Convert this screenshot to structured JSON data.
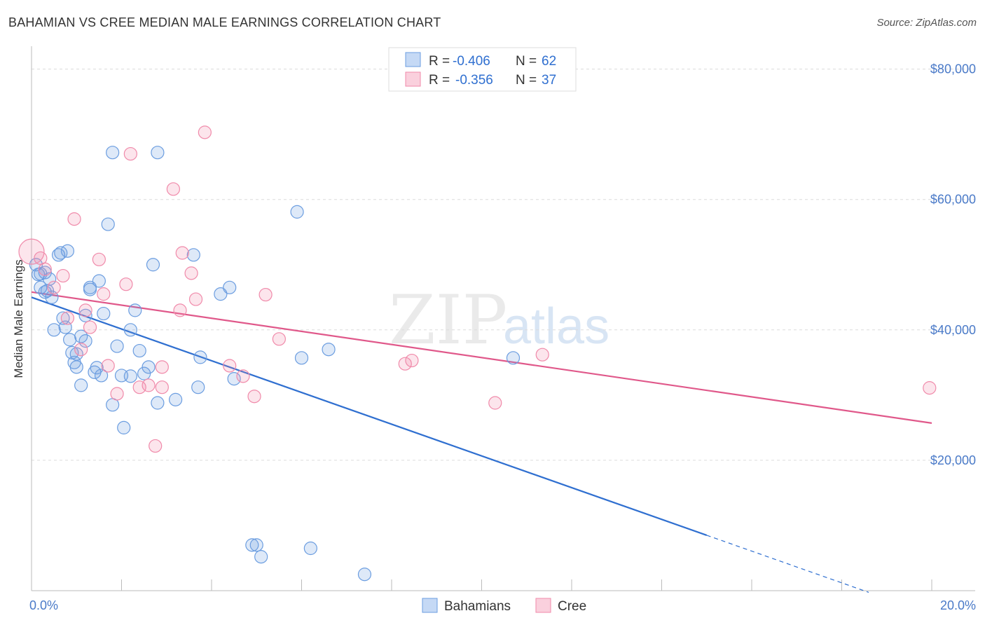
{
  "header": {
    "title": "BAHAMIAN VS CREE MEDIAN MALE EARNINGS CORRELATION CHART",
    "source": "Source: ZipAtlas.com"
  },
  "watermark": {
    "zip": "ZIP",
    "atlas": "atlas"
  },
  "legend_top": {
    "rows": [
      {
        "r_label": "R =",
        "r_value": "-0.406",
        "n_label": "N =",
        "n_value": "62",
        "color": "#6b9de0"
      },
      {
        "r_label": "R =",
        "r_value": "-0.356",
        "n_label": "N =",
        "n_value": "37",
        "color": "#f08aaa"
      }
    ]
  },
  "legend_bottom": {
    "items": [
      {
        "label": "Bahamians",
        "color": "#6b9de0"
      },
      {
        "label": "Cree",
        "color": "#f08aaa"
      }
    ]
  },
  "chart_data": {
    "type": "scatter",
    "title": "BAHAMIAN VS CREE MEDIAN MALE EARNINGS CORRELATION CHART",
    "xlabel": "",
    "ylabel": "Median Male Earnings",
    "xlim": [
      0,
      20
    ],
    "ylim": [
      0,
      82000
    ],
    "x_tick_labels": [
      {
        "value": 0,
        "label": "0.0%"
      },
      {
        "value": 20,
        "label": "20.0%"
      }
    ],
    "y_tick_labels": [
      {
        "value": 20000,
        "label": "$20,000"
      },
      {
        "value": 40000,
        "label": "$40,000"
      },
      {
        "value": 60000,
        "label": "$60,000"
      },
      {
        "value": 80000,
        "label": "$80,000"
      }
    ],
    "grid": true,
    "legend_position": "top-center",
    "series": [
      {
        "name": "Bahamians",
        "color": "#6b9de0",
        "line_color": "#2f6fd0",
        "trend": {
          "x0": 0.0,
          "y0": 45000,
          "x1": 15.0,
          "y1": 8500,
          "dash_to_x": 18.6
        },
        "points": [
          [
            0.1,
            50000
          ],
          [
            0.15,
            48500
          ],
          [
            0.2,
            46500
          ],
          [
            0.3,
            48800
          ],
          [
            0.35,
            46000
          ],
          [
            0.4,
            47800
          ],
          [
            0.45,
            45000
          ],
          [
            0.5,
            40000
          ],
          [
            0.6,
            51500
          ],
          [
            0.65,
            51800
          ],
          [
            0.7,
            41800
          ],
          [
            0.75,
            40400
          ],
          [
            0.8,
            52100
          ],
          [
            0.85,
            38500
          ],
          [
            0.9,
            36500
          ],
          [
            0.95,
            35000
          ],
          [
            1.0,
            36300
          ],
          [
            1.1,
            31500
          ],
          [
            1.2,
            38300
          ],
          [
            1.3,
            46200
          ],
          [
            1.4,
            33500
          ],
          [
            1.45,
            34200
          ],
          [
            1.5,
            47500
          ],
          [
            1.55,
            33000
          ],
          [
            1.6,
            42500
          ],
          [
            1.7,
            56200
          ],
          [
            1.8,
            28500
          ],
          [
            1.9,
            37500
          ],
          [
            2.0,
            33000
          ],
          [
            2.05,
            25000
          ],
          [
            2.2,
            40000
          ],
          [
            2.3,
            43000
          ],
          [
            2.4,
            36800
          ],
          [
            2.5,
            33300
          ],
          [
            2.6,
            34300
          ],
          [
            2.7,
            50000
          ],
          [
            2.8,
            28800
          ],
          [
            3.2,
            29300
          ],
          [
            3.6,
            51500
          ],
          [
            3.7,
            31200
          ],
          [
            3.75,
            35800
          ],
          [
            4.2,
            45500
          ],
          [
            4.4,
            46500
          ],
          [
            4.5,
            32500
          ],
          [
            4.9,
            7000
          ],
          [
            5.0,
            7000
          ],
          [
            5.1,
            5200
          ],
          [
            5.9,
            58100
          ],
          [
            6.0,
            35700
          ],
          [
            6.2,
            6500
          ],
          [
            6.6,
            37000
          ],
          [
            7.4,
            2500
          ],
          [
            10.7,
            35700
          ],
          [
            1.3,
            46500
          ],
          [
            0.2,
            48600
          ],
          [
            1.2,
            42200
          ],
          [
            1.0,
            34300
          ],
          [
            2.8,
            67200
          ],
          [
            1.8,
            67200
          ],
          [
            0.3,
            45800
          ],
          [
            2.2,
            32900
          ],
          [
            1.1,
            39000
          ]
        ]
      },
      {
        "name": "Cree",
        "color": "#f08aaa",
        "line_color": "#e0588a",
        "trend": {
          "x0": 0.0,
          "y0": 45800,
          "x1": 20.0,
          "y1": 25700
        },
        "points": [
          [
            0.0,
            52000
          ],
          [
            0.2,
            51000
          ],
          [
            0.3,
            49300
          ],
          [
            0.5,
            46500
          ],
          [
            0.7,
            48300
          ],
          [
            0.8,
            41800
          ],
          [
            0.95,
            57000
          ],
          [
            1.1,
            37000
          ],
          [
            1.2,
            43000
          ],
          [
            1.3,
            40400
          ],
          [
            1.5,
            50800
          ],
          [
            1.6,
            45500
          ],
          [
            1.7,
            34500
          ],
          [
            1.9,
            30200
          ],
          [
            2.1,
            47000
          ],
          [
            2.2,
            67000
          ],
          [
            2.4,
            31200
          ],
          [
            2.6,
            31500
          ],
          [
            2.75,
            22200
          ],
          [
            2.9,
            31200
          ],
          [
            3.15,
            61600
          ],
          [
            3.35,
            51800
          ],
          [
            3.55,
            48700
          ],
          [
            3.65,
            44700
          ],
          [
            3.3,
            43000
          ],
          [
            4.4,
            34500
          ],
          [
            4.7,
            32900
          ],
          [
            4.95,
            29800
          ],
          [
            5.2,
            45400
          ],
          [
            5.5,
            38600
          ],
          [
            8.3,
            34800
          ],
          [
            8.45,
            35300
          ],
          [
            10.3,
            28800
          ],
          [
            11.35,
            36200
          ],
          [
            19.95,
            31100
          ],
          [
            3.85,
            70300
          ],
          [
            2.9,
            34300
          ]
        ]
      }
    ]
  }
}
